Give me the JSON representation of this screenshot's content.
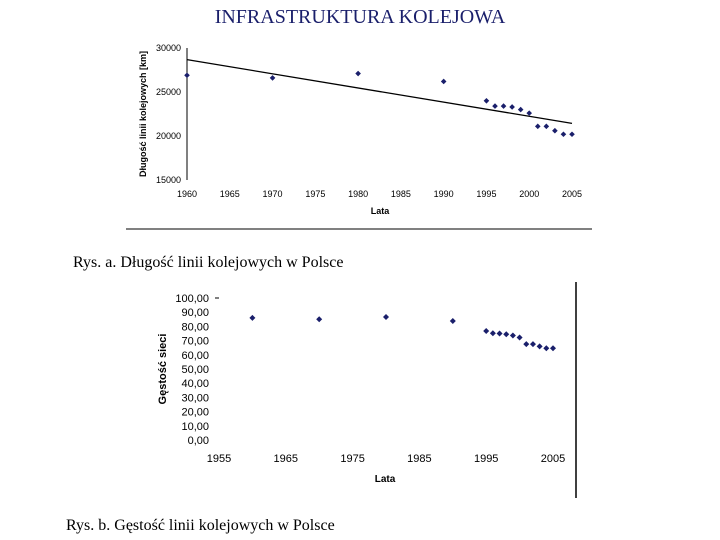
{
  "page": {
    "title": "INFRASTRUKTURA KOLEJOWA",
    "caption_a": "Rys. a. Długość linii kolejowych w Polsce",
    "caption_b": "Rys. b. Gęstość linii kolejowych w Polsce"
  },
  "chart_data": [
    {
      "type": "scatter",
      "title": "",
      "xlabel": "Lata",
      "ylabel": "Długość linii kolejowych [km]",
      "xlim": [
        1960,
        2005
      ],
      "ylim": [
        15000,
        30000
      ],
      "xticks": [
        "1960",
        "1965",
        "1970",
        "1975",
        "1980",
        "1985",
        "1990",
        "1995",
        "2000",
        "2005"
      ],
      "yticks": [
        "15000",
        "20000",
        "25000",
        "30000"
      ],
      "grid": false,
      "trendline": true,
      "marker_color": "#1a1f6b",
      "points": [
        {
          "x": 1960,
          "y": 26900
        },
        {
          "x": 1970,
          "y": 26600
        },
        {
          "x": 1980,
          "y": 27100
        },
        {
          "x": 1990,
          "y": 26200
        },
        {
          "x": 1995,
          "y": 24000
        },
        {
          "x": 1996,
          "y": 23400
        },
        {
          "x": 1997,
          "y": 23400
        },
        {
          "x": 1998,
          "y": 23300
        },
        {
          "x": 1999,
          "y": 23000
        },
        {
          "x": 2000,
          "y": 22600
        },
        {
          "x": 2001,
          "y": 21100
        },
        {
          "x": 2002,
          "y": 21100
        },
        {
          "x": 2003,
          "y": 20600
        },
        {
          "x": 2004,
          "y": 20200
        },
        {
          "x": 2005,
          "y": 20200
        }
      ]
    },
    {
      "type": "scatter",
      "title": "",
      "xlabel": "Lata",
      "ylabel": "Gęstość sieci",
      "xlim": [
        1955,
        2005
      ],
      "ylim": [
        0,
        100
      ],
      "xticks": [
        "1955",
        "1965",
        "1975",
        "1985",
        "1995",
        "2005"
      ],
      "yticks": [
        "0,00",
        "10,00",
        "20,00",
        "30,00",
        "40,00",
        "50,00",
        "60,00",
        "70,00",
        "80,00",
        "90,00",
        "100,00"
      ],
      "grid": false,
      "marker_color": "#1a1f6b",
      "points": [
        {
          "x": 1960,
          "y": 86.0
        },
        {
          "x": 1970,
          "y": 85.0
        },
        {
          "x": 1980,
          "y": 86.6
        },
        {
          "x": 1990,
          "y": 83.8
        },
        {
          "x": 1995,
          "y": 76.8
        },
        {
          "x": 1996,
          "y": 75.2
        },
        {
          "x": 1997,
          "y": 75.0
        },
        {
          "x": 1998,
          "y": 74.5
        },
        {
          "x": 1999,
          "y": 73.6
        },
        {
          "x": 2000,
          "y": 72.2
        },
        {
          "x": 2001,
          "y": 67.5
        },
        {
          "x": 2002,
          "y": 67.5
        },
        {
          "x": 2003,
          "y": 65.9
        },
        {
          "x": 2004,
          "y": 64.6
        },
        {
          "x": 2005,
          "y": 64.6
        }
      ]
    }
  ]
}
